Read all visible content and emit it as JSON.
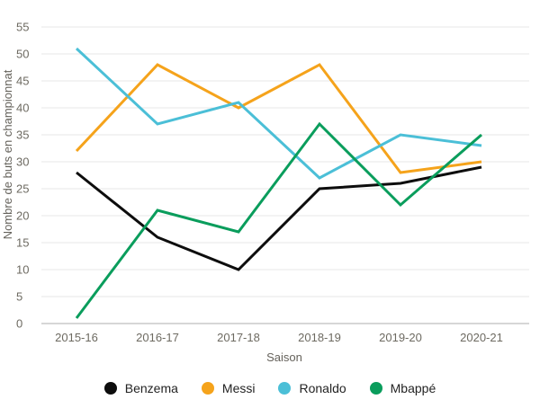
{
  "chart_data": {
    "type": "line",
    "title": "",
    "xlabel": "Saison",
    "ylabel": "Nombre de buts en championnat",
    "categories": [
      "2015-16",
      "2016-17",
      "2017-18",
      "2018-19",
      "2019-20",
      "2020-21"
    ],
    "series": [
      {
        "name": "Benzema",
        "color": "#0D0D0D",
        "values": [
          28,
          16,
          10,
          25,
          26,
          29
        ]
      },
      {
        "name": "Messi",
        "color": "#F5A31B",
        "values": [
          32,
          48,
          40,
          48,
          28,
          30
        ]
      },
      {
        "name": "Ronaldo",
        "color": "#4BBFD7",
        "values": [
          51,
          37,
          41,
          27,
          35,
          33
        ]
      },
      {
        "name": "Mbappé",
        "color": "#0A9D5C",
        "values": [
          1,
          21,
          17,
          37,
          22,
          35
        ]
      }
    ],
    "ylim": [
      0,
      55
    ],
    "ytick_step": 5,
    "grid": true,
    "legend_position": "bottom",
    "colors": {
      "gridline": "#E7E7E7",
      "baseline": "#ADADAD",
      "tick_label": "#6D6A61",
      "axis_title": "#65625B",
      "legend_text": "#232323",
      "background": "#FFFFFF"
    }
  }
}
